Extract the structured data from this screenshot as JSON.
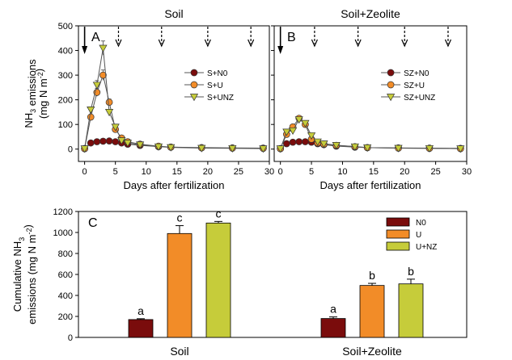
{
  "chart_data": [
    {
      "type": "line",
      "panel_label": "A",
      "title": "Soil",
      "xlabel": "Days after fertilization",
      "ylabel_line1": "NH3 emissions",
      "ylabel_line2": "(mg N m-2)",
      "xlim": [
        -1,
        30
      ],
      "ylim": [
        -50,
        500
      ],
      "xticks": [
        0,
        5,
        10,
        15,
        20,
        25,
        30
      ],
      "yticks": [
        0,
        100,
        200,
        300,
        400,
        500
      ],
      "arrows": [
        {
          "day": 0,
          "style": "solid"
        },
        {
          "day": 5.5,
          "style": "dashed"
        },
        {
          "day": 12.5,
          "style": "dashed"
        },
        {
          "day": 20,
          "style": "dashed"
        },
        {
          "day": 27,
          "style": "dashed"
        }
      ],
      "legend_position": "right",
      "series": [
        {
          "name": "S+N0",
          "marker": "circle",
          "color": "#7a0c0c",
          "x": [
            0,
            1,
            2,
            3,
            4,
            5,
            6,
            7,
            9,
            12,
            14,
            19,
            24,
            29
          ],
          "y": [
            2,
            25,
            30,
            32,
            33,
            30,
            25,
            20,
            15,
            10,
            8,
            6,
            5,
            4
          ]
        },
        {
          "name": "S+U",
          "marker": "circle",
          "color": "#f28c28",
          "x": [
            0,
            1,
            2,
            3,
            4,
            5,
            6,
            7,
            9,
            12,
            14,
            19,
            24,
            29
          ],
          "y": [
            2,
            130,
            230,
            300,
            190,
            80,
            45,
            30,
            20,
            12,
            8,
            5,
            4,
            3
          ]
        },
        {
          "name": "S+UNZ",
          "marker": "triangle",
          "color": "#c6cc3a",
          "x": [
            0,
            1,
            2,
            3,
            4,
            5,
            6,
            7,
            9,
            12,
            14,
            19,
            24,
            29
          ],
          "y": [
            2,
            160,
            260,
            410,
            150,
            90,
            35,
            25,
            18,
            10,
            7,
            4,
            3,
            2
          ]
        }
      ]
    },
    {
      "type": "line",
      "panel_label": "B",
      "title": "Soil+Zeolite",
      "xlabel": "Days after fertilization",
      "xlim": [
        -1,
        30
      ],
      "ylim": [
        -50,
        500
      ],
      "xticks": [
        0,
        5,
        10,
        15,
        20,
        25,
        30
      ],
      "arrows": [
        {
          "day": 0,
          "style": "solid"
        },
        {
          "day": 5.5,
          "style": "dashed"
        },
        {
          "day": 12.5,
          "style": "dashed"
        },
        {
          "day": 20,
          "style": "dashed"
        },
        {
          "day": 27,
          "style": "dashed"
        }
      ],
      "legend_position": "right",
      "series": [
        {
          "name": "SZ+N0",
          "marker": "circle",
          "color": "#7a0c0c",
          "x": [
            0,
            1,
            2,
            3,
            4,
            5,
            6,
            7,
            9,
            12,
            14,
            19,
            24,
            29
          ],
          "y": [
            2,
            22,
            28,
            30,
            30,
            28,
            22,
            18,
            12,
            8,
            6,
            5,
            4,
            3
          ]
        },
        {
          "name": "SZ+U",
          "marker": "circle",
          "color": "#f28c28",
          "x": [
            0,
            1,
            2,
            3,
            4,
            5,
            6,
            7,
            9,
            12,
            14,
            19,
            24,
            29
          ],
          "y": [
            2,
            60,
            90,
            125,
            100,
            40,
            25,
            20,
            15,
            10,
            6,
            4,
            3,
            2
          ]
        },
        {
          "name": "SZ+UNZ",
          "marker": "triangle",
          "color": "#c6cc3a",
          "x": [
            0,
            1,
            2,
            3,
            4,
            5,
            6,
            7,
            9,
            12,
            14,
            19,
            24,
            29
          ],
          "y": [
            2,
            70,
            75,
            120,
            105,
            55,
            30,
            22,
            16,
            10,
            6,
            4,
            3,
            2
          ]
        }
      ]
    },
    {
      "type": "bar",
      "panel_label": "C",
      "categories": [
        "Soil",
        "Soil+Zeolite"
      ],
      "ylabel_line1": "Cumulative NH3",
      "ylabel_line2": "emissions (mg N m-2)",
      "ylim": [
        0,
        1200
      ],
      "yticks": [
        0,
        200,
        400,
        600,
        800,
        1000,
        1200
      ],
      "legend_position": "top-right",
      "series": [
        {
          "name": "N0",
          "color": "#7a0c0c",
          "values": [
            170,
            180
          ],
          "errors": [
            8,
            15
          ],
          "letters": [
            "a",
            "a"
          ]
        },
        {
          "name": "U",
          "color": "#f28c28",
          "values": [
            990,
            495
          ],
          "errors": [
            75,
            20
          ],
          "letters": [
            "c",
            "b"
          ]
        },
        {
          "name": "U+NZ",
          "color": "#c6cc3a",
          "values": [
            1090,
            510
          ],
          "errors": [
            15,
            45
          ],
          "letters": [
            "c",
            "b"
          ]
        }
      ]
    }
  ]
}
